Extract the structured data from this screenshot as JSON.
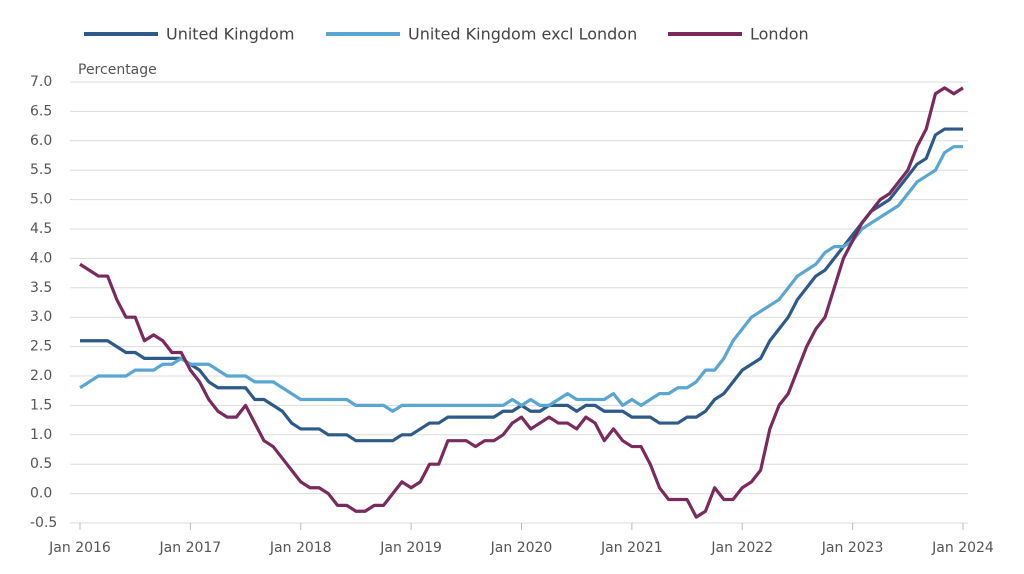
{
  "chart_data": {
    "type": "line",
    "y_label": "Percentage",
    "x": [
      "2016-01",
      "2016-02",
      "2016-03",
      "2016-04",
      "2016-05",
      "2016-06",
      "2016-07",
      "2016-08",
      "2016-09",
      "2016-10",
      "2016-11",
      "2016-12",
      "2017-01",
      "2017-02",
      "2017-03",
      "2017-04",
      "2017-05",
      "2017-06",
      "2017-07",
      "2017-08",
      "2017-09",
      "2017-10",
      "2017-11",
      "2017-12",
      "2018-01",
      "2018-02",
      "2018-03",
      "2018-04",
      "2018-05",
      "2018-06",
      "2018-07",
      "2018-08",
      "2018-09",
      "2018-10",
      "2018-11",
      "2018-12",
      "2019-01",
      "2019-02",
      "2019-03",
      "2019-04",
      "2019-05",
      "2019-06",
      "2019-07",
      "2019-08",
      "2019-09",
      "2019-10",
      "2019-11",
      "2019-12",
      "2020-01",
      "2020-02",
      "2020-03",
      "2020-04",
      "2020-05",
      "2020-06",
      "2020-07",
      "2020-08",
      "2020-09",
      "2020-10",
      "2020-11",
      "2020-12",
      "2021-01",
      "2021-02",
      "2021-03",
      "2021-04",
      "2021-05",
      "2021-06",
      "2021-07",
      "2021-08",
      "2021-09",
      "2021-10",
      "2021-11",
      "2021-12",
      "2022-01",
      "2022-02",
      "2022-03",
      "2022-04",
      "2022-05",
      "2022-06",
      "2022-07",
      "2022-08",
      "2022-09",
      "2022-10",
      "2022-11",
      "2022-12",
      "2023-01",
      "2023-02",
      "2023-03",
      "2023-04",
      "2023-05",
      "2023-06",
      "2023-07",
      "2023-08",
      "2023-09",
      "2023-10",
      "2023-11",
      "2023-12",
      "2024-01"
    ],
    "series": [
      {
        "name": "United Kingdom",
        "color": "#2e5a8a",
        "values": [
          2.6,
          2.6,
          2.6,
          2.6,
          2.5,
          2.4,
          2.4,
          2.3,
          2.3,
          2.3,
          2.3,
          2.3,
          2.2,
          2.1,
          1.9,
          1.8,
          1.8,
          1.8,
          1.8,
          1.6,
          1.6,
          1.5,
          1.4,
          1.2,
          1.1,
          1.1,
          1.1,
          1.0,
          1.0,
          1.0,
          0.9,
          0.9,
          0.9,
          0.9,
          0.9,
          1.0,
          1.0,
          1.1,
          1.2,
          1.2,
          1.3,
          1.3,
          1.3,
          1.3,
          1.3,
          1.3,
          1.4,
          1.4,
          1.5,
          1.4,
          1.4,
          1.5,
          1.5,
          1.5,
          1.4,
          1.5,
          1.5,
          1.4,
          1.4,
          1.4,
          1.3,
          1.3,
          1.3,
          1.2,
          1.2,
          1.2,
          1.3,
          1.3,
          1.4,
          1.6,
          1.7,
          1.9,
          2.1,
          2.2,
          2.3,
          2.6,
          2.8,
          3.0,
          3.3,
          3.5,
          3.7,
          3.8,
          4.0,
          4.2,
          4.4,
          4.6,
          4.8,
          4.9,
          5.0,
          5.2,
          5.4,
          5.6,
          5.7,
          6.1,
          6.2,
          6.2,
          6.2
        ]
      },
      {
        "name": "United Kingdom excl London",
        "color": "#5aa6d2",
        "values": [
          1.8,
          1.9,
          2.0,
          2.0,
          2.0,
          2.0,
          2.1,
          2.1,
          2.1,
          2.2,
          2.2,
          2.3,
          2.2,
          2.2,
          2.2,
          2.1,
          2.0,
          2.0,
          2.0,
          1.9,
          1.9,
          1.9,
          1.8,
          1.7,
          1.6,
          1.6,
          1.6,
          1.6,
          1.6,
          1.6,
          1.5,
          1.5,
          1.5,
          1.5,
          1.4,
          1.5,
          1.5,
          1.5,
          1.5,
          1.5,
          1.5,
          1.5,
          1.5,
          1.5,
          1.5,
          1.5,
          1.5,
          1.6,
          1.5,
          1.6,
          1.5,
          1.5,
          1.6,
          1.7,
          1.6,
          1.6,
          1.6,
          1.6,
          1.7,
          1.5,
          1.6,
          1.5,
          1.6,
          1.7,
          1.7,
          1.8,
          1.8,
          1.9,
          2.1,
          2.1,
          2.3,
          2.6,
          2.8,
          3.0,
          3.1,
          3.2,
          3.3,
          3.5,
          3.7,
          3.8,
          3.9,
          4.1,
          4.2,
          4.2,
          4.3,
          4.5,
          4.6,
          4.7,
          4.8,
          4.9,
          5.1,
          5.3,
          5.4,
          5.5,
          5.8,
          5.9,
          5.9
        ]
      },
      {
        "name": "London",
        "color": "#7a2a5c",
        "values": [
          3.9,
          3.8,
          3.7,
          3.7,
          3.3,
          3.0,
          3.0,
          2.6,
          2.7,
          2.6,
          2.4,
          2.4,
          2.1,
          1.9,
          1.6,
          1.4,
          1.3,
          1.3,
          1.5,
          1.2,
          0.9,
          0.8,
          0.6,
          0.4,
          0.2,
          0.1,
          0.1,
          0.0,
          -0.2,
          -0.2,
          -0.3,
          -0.3,
          -0.2,
          -0.2,
          0.0,
          0.2,
          0.1,
          0.2,
          0.5,
          0.5,
          0.9,
          0.9,
          0.9,
          0.8,
          0.9,
          0.9,
          1.0,
          1.2,
          1.3,
          1.1,
          1.2,
          1.3,
          1.2,
          1.2,
          1.1,
          1.3,
          1.2,
          0.9,
          1.1,
          0.9,
          0.8,
          0.8,
          0.5,
          0.1,
          -0.1,
          -0.1,
          -0.1,
          -0.4,
          -0.3,
          0.1,
          -0.1,
          -0.1,
          0.1,
          0.2,
          0.4,
          1.1,
          1.5,
          1.7,
          2.1,
          2.5,
          2.8,
          3.0,
          3.5,
          4.0,
          4.3,
          4.6,
          4.8,
          5.0,
          5.1,
          5.3,
          5.5,
          5.9,
          6.2,
          6.8,
          6.9,
          6.8,
          6.9
        ]
      }
    ],
    "xlim": [
      "2016-01",
      "2024-01"
    ],
    "xticks": [
      {
        "value": "2016-01",
        "label": "Jan 2016"
      },
      {
        "value": "2017-01",
        "label": "Jan 2017"
      },
      {
        "value": "2018-01",
        "label": "Jan 2018"
      },
      {
        "value": "2019-01",
        "label": "Jan 2019"
      },
      {
        "value": "2020-01",
        "label": "Jan 2020"
      },
      {
        "value": "2021-01",
        "label": "Jan 2021"
      },
      {
        "value": "2022-01",
        "label": "Jan 2022"
      },
      {
        "value": "2023-01",
        "label": "Jan 2023"
      },
      {
        "value": "2024-01",
        "label": "Jan 2024"
      }
    ],
    "ylim": [
      -0.5,
      7.0
    ],
    "yticks": [
      -0.5,
      {
        "value": 0,
        "label": "0.0"
      },
      0.5,
      {
        "value": 1,
        "label": "1.0"
      },
      1.5,
      {
        "value": 2,
        "label": "2.0"
      },
      2.5,
      {
        "value": 3,
        "label": "3.0"
      },
      3.5,
      {
        "value": 4,
        "label": "4.0"
      },
      4.5,
      {
        "value": 5,
        "label": "5.0"
      },
      5.5,
      {
        "value": 6,
        "label": "6.0"
      },
      6.5,
      {
        "value": 7,
        "label": "7.0"
      }
    ],
    "grid": true
  }
}
